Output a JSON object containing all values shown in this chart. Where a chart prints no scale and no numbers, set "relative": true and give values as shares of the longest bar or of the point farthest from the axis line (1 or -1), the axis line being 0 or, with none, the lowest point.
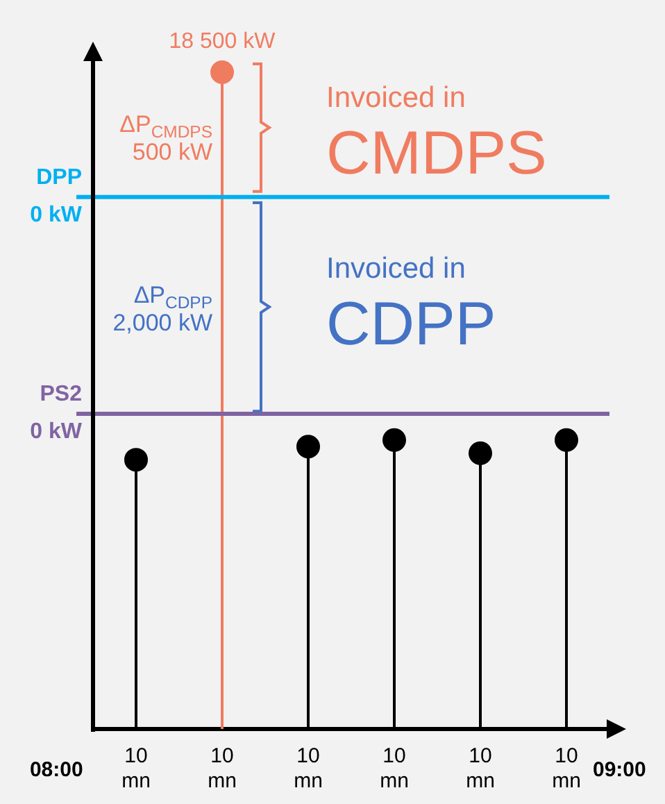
{
  "chart_data": {
    "type": "lollipop",
    "relative": true,
    "categories": [
      "10 mn",
      "10 mn",
      "10 mn",
      "10 mn",
      "10 mn",
      "10 mn"
    ],
    "values": [
      0.41,
      1,
      0.43,
      0.44,
      0.42,
      0.44
    ],
    "colors": [
      "#000000",
      "#f07c60",
      "#000000",
      "#000000",
      "#000000",
      "#000000"
    ],
    "tick_labels": "x",
    "marker": "circle",
    "ref_lines": [
      {
        "axis": "y",
        "value": 0.81,
        "label": "DPP\n0 kW",
        "color": "#00b0f0"
      },
      {
        "axis": "y",
        "value": 0.48,
        "label": "PS2\n0 kW",
        "color": "#8064a2"
      }
    ],
    "annotations": [
      {
        "text": "18 500 kW",
        "y": 1
      },
      "ΔP$_{CMDPS}$\n500 kW",
      "Invoiced in\nCMDPS",
      "ΔP$_{CDPP}$\n2,000 kW",
      "Invoiced in\nCDPP",
      "08:00",
      "09:00"
    ]
  }
}
